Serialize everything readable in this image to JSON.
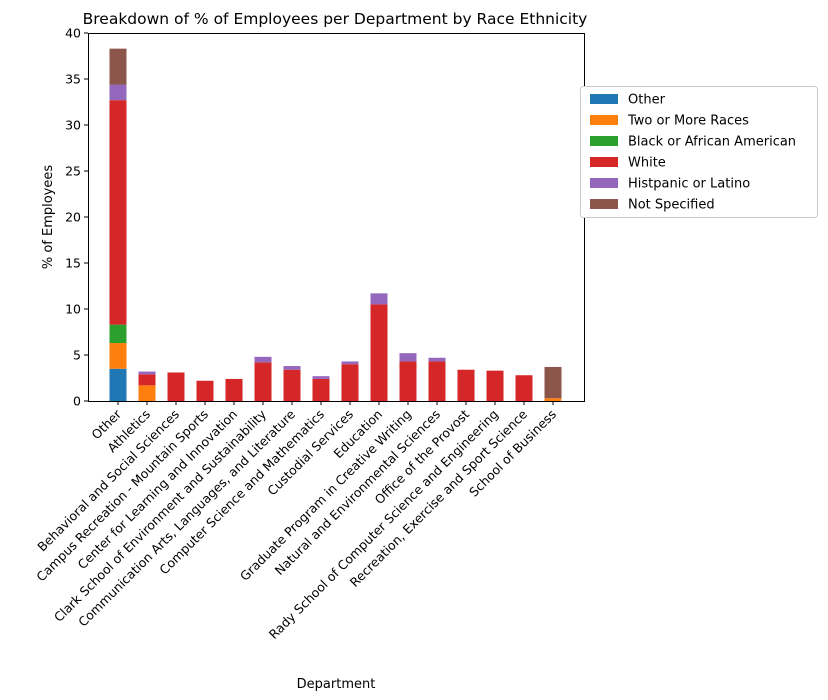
{
  "chart_data": {
    "type": "bar",
    "stacked": true,
    "title": "Breakdown of % of Employees per Department by Race Ethnicity",
    "xlabel": "Department",
    "ylabel": "% of Employees",
    "ylim": [
      0,
      40
    ],
    "yticks": [
      0,
      5,
      10,
      15,
      20,
      25,
      30,
      35,
      40
    ],
    "grid": false,
    "legend_position": "right",
    "categories": [
      "Other",
      "Athletics",
      "Behavioral and Social Sciences",
      "Campus Recreation - Mountain Sports",
      "Center for Learning and Innovation",
      "Clark School of Environment and Sustainability",
      "Communication Arts, Languages, and Literature",
      "Computer Science and Mathematics",
      "Custodial Services",
      "Education",
      "Graduate Program in Creative Writing",
      "Natural and Environmental Sciences",
      "Office of the Provost",
      "Rady School of Computer Science and Engineering",
      "Recreation, Exercise and Sport Science",
      "School of Business"
    ],
    "series": [
      {
        "name": "Other",
        "color": "#1f77b4",
        "values": [
          3.5,
          0,
          0,
          0,
          0,
          0,
          0,
          0,
          0,
          0,
          0,
          0,
          0,
          0,
          0,
          0
        ]
      },
      {
        "name": "Two or More Races",
        "color": "#ff7f0e",
        "values": [
          2.8,
          1.7,
          0,
          0,
          0,
          0,
          0,
          0,
          0,
          0,
          0,
          0,
          0,
          0,
          0,
          0.3
        ]
      },
      {
        "name": "Black or African American",
        "color": "#2ca02c",
        "values": [
          2.0,
          0,
          0,
          0,
          0,
          0,
          0,
          0,
          0,
          0,
          0,
          0,
          0,
          0,
          0,
          0
        ]
      },
      {
        "name": "White",
        "color": "#d62728",
        "values": [
          24.4,
          1.2,
          3.1,
          2.2,
          2.4,
          4.2,
          3.4,
          2.4,
          4.0,
          10.5,
          4.3,
          4.3,
          3.4,
          3.3,
          2.8,
          0
        ]
      },
      {
        "name": "Histpanic or Latino",
        "color": "#9467bd",
        "values": [
          1.7,
          0.3,
          0,
          0,
          0,
          0.6,
          0.4,
          0.3,
          0.3,
          1.2,
          0.9,
          0.4,
          0,
          0,
          0,
          0
        ]
      },
      {
        "name": "Not Specified",
        "color": "#8c564b",
        "values": [
          3.9,
          0,
          0,
          0,
          0,
          0,
          0,
          0,
          0,
          0,
          0,
          0,
          0,
          0,
          0,
          3.4
        ]
      }
    ]
  }
}
